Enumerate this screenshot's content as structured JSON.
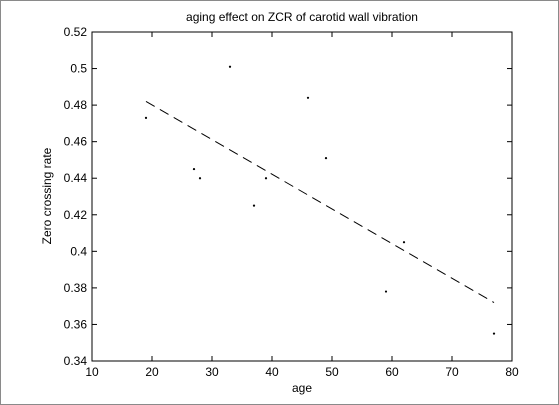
{
  "chart_data": {
    "type": "scatter",
    "title": "aging effect on ZCR of carotid wall vibration",
    "xlabel": "age",
    "ylabel": "Zero crossing rate",
    "xlim": [
      10,
      80
    ],
    "ylim": [
      0.34,
      0.52
    ],
    "xticks": [
      "10",
      "20",
      "30",
      "40",
      "50",
      "60",
      "70",
      "80"
    ],
    "yticks": [
      "0.34",
      "0.36",
      "0.38",
      "0.4",
      "0.42",
      "0.44",
      "0.46",
      "0.48",
      "0.5",
      "0.52"
    ],
    "grid": false,
    "legend": "none",
    "series": [
      {
        "kind": "points",
        "x": [
          19,
          27,
          28,
          33,
          37,
          39,
          46,
          49,
          59,
          62,
          77
        ],
        "y": [
          0.473,
          0.445,
          0.44,
          0.501,
          0.425,
          0.44,
          0.484,
          0.451,
          0.378,
          0.405,
          0.355
        ]
      },
      {
        "kind": "trend-line",
        "style": "dashed",
        "x": [
          19,
          77
        ],
        "y": [
          0.482,
          0.372
        ]
      }
    ],
    "colors": {
      "axes": "#000000",
      "points": "#000000",
      "trend": "#000000",
      "frame": "#8a8a8a"
    }
  }
}
